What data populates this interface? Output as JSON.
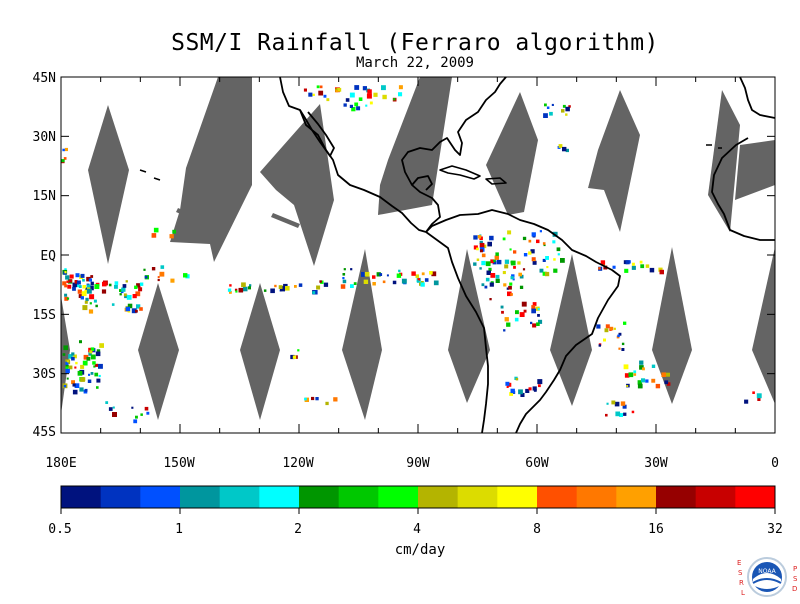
{
  "title": "SSM/I Rainfall (Ferraro algorithm)",
  "subtitle": "March 22, 2009",
  "lat_labels": [
    "45N",
    "30N",
    "15N",
    "EQ",
    "15S",
    "30S",
    "45S"
  ],
  "lon_labels": [
    "180E",
    "150W",
    "120W",
    "90W",
    "60W",
    "30W",
    "0"
  ],
  "colorbar": {
    "colors": [
      "#00127e",
      "#0033c0",
      "#0050ff",
      "#00969e",
      "#00c8c8",
      "#00ffff",
      "#009600",
      "#00c800",
      "#00ff00",
      "#b4b400",
      "#dcdc00",
      "#ffff00",
      "#ff5000",
      "#ff7800",
      "#ffa000",
      "#960000",
      "#c80000",
      "#ff0000"
    ],
    "tick_labels": [
      "0.5",
      "1",
      "2",
      "4",
      "8",
      "16",
      "32"
    ],
    "units": "cm/day"
  },
  "colors": {
    "no_data_swath": "#646464",
    "coastline": "#000000",
    "ocean": "#ffffff"
  },
  "logo": {
    "left_letters": [
      "E",
      "S",
      "R",
      "L"
    ],
    "right_letters": [
      "P",
      "S",
      "D"
    ],
    "badge": "NOAA"
  }
}
